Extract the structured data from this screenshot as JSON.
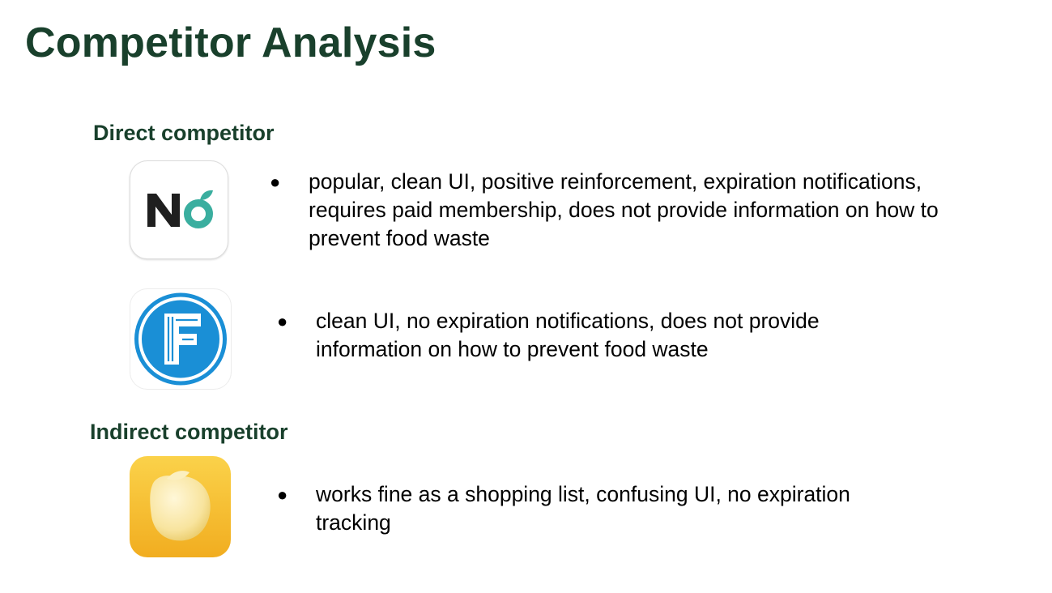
{
  "slide": {
    "title": "Competitor Analysis"
  },
  "sections": {
    "direct_label": "Direct competitor",
    "indirect_label": "Indirect competitor"
  },
  "competitors": [
    {
      "icon": "nowaste-app-icon",
      "bullet": "●",
      "text": "popular, clean UI, positive reinforcement, expiration notifications, requires paid membership, does not provide information on how to prevent food waste"
    },
    {
      "icon": "fridge-app-icon",
      "bullet": "●",
      "text": "clean UI, no expiration notifications, does not provide information on how to prevent food waste"
    },
    {
      "icon": "lemon-app-icon",
      "bullet": "●",
      "text": "works fine as a shopping list, confusing UI,  no expiration tracking"
    }
  ],
  "colors": {
    "heading": "#19402c",
    "nowaste_accent": "#3aae9f",
    "fridge_blue": "#1a8fd6",
    "lemon_bg": "#f6c136"
  }
}
